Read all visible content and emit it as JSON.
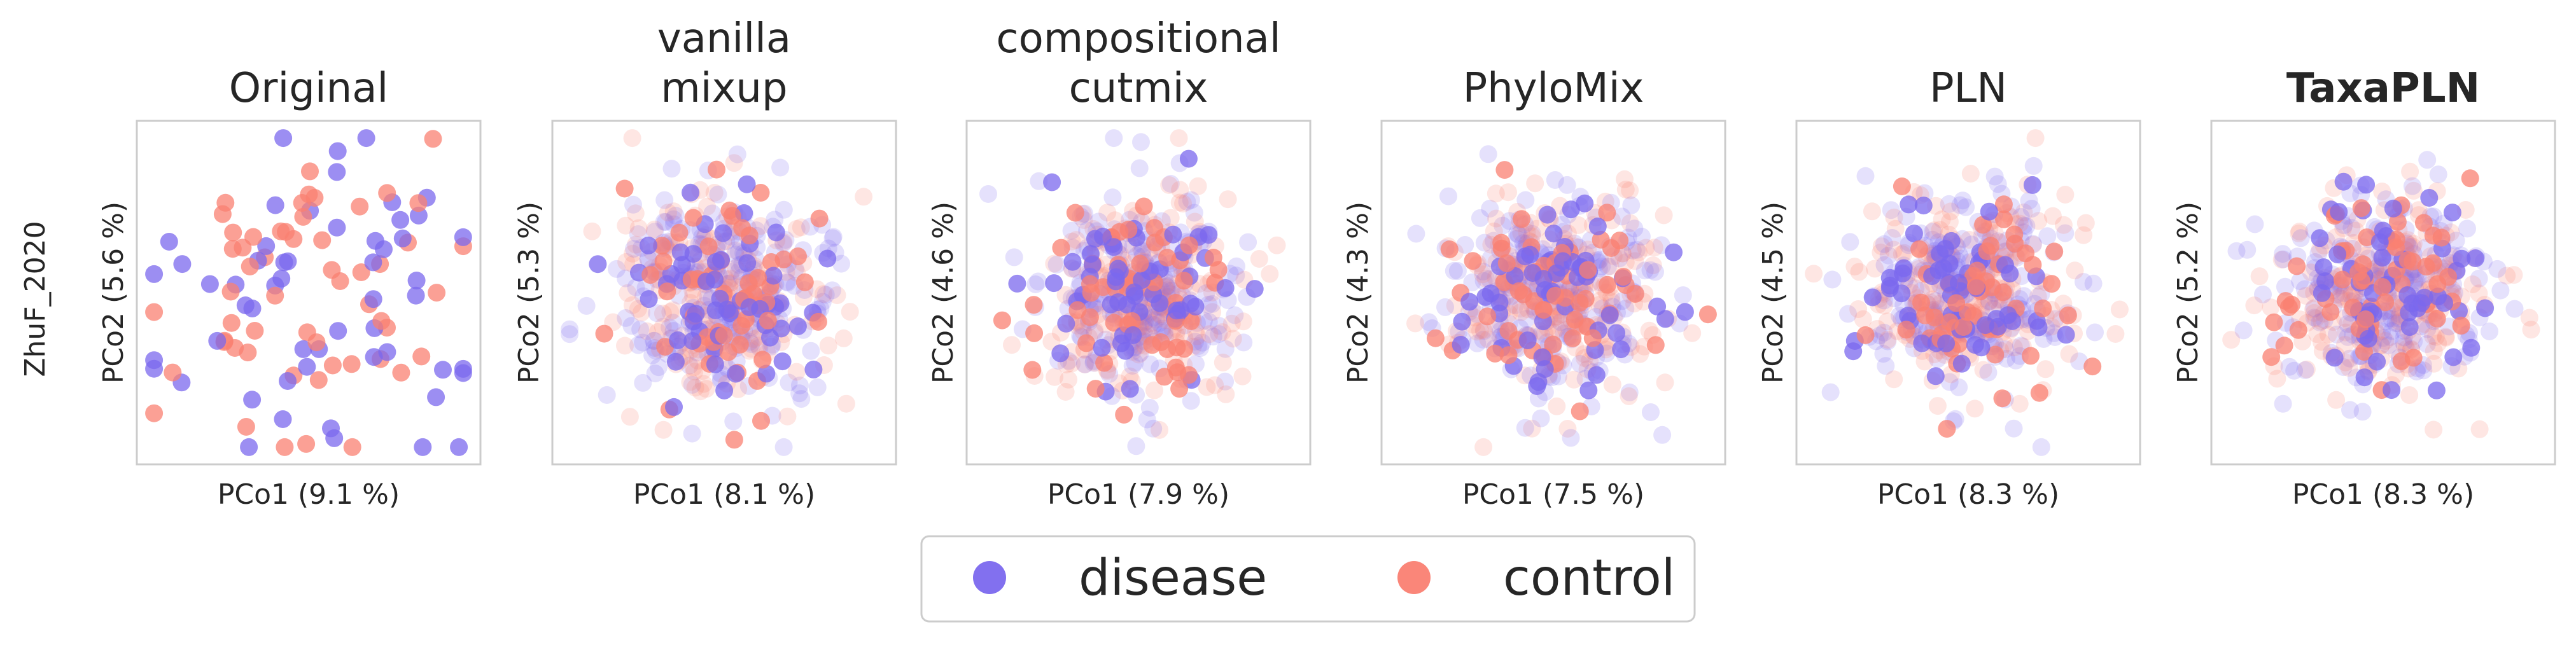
{
  "figure": {
    "row_label": "ZhuF_2020",
    "legend": {
      "placement": "bottom-center",
      "entries": [
        {
          "label": "disease",
          "color": "#7B68EE"
        },
        {
          "label": "control",
          "color": "#FA8072"
        }
      ]
    }
  },
  "chart_data": [
    {
      "type": "scatter",
      "title": [
        "Original"
      ],
      "title_bold": false,
      "xlabel": "PCo1 (9.1 %)",
      "ylabel": "PCo2 (5.6 %)",
      "grid": false,
      "n_disease": 55,
      "n_control": 55,
      "synthetic_points": 0,
      "spread": 1.0
    },
    {
      "type": "scatter",
      "title": [
        "vanilla",
        "mixup"
      ],
      "title_bold": false,
      "xlabel": "PCo1 (8.1 %)",
      "ylabel": "PCo2 (5.3 %)",
      "grid": false,
      "n_disease": 55,
      "n_control": 55,
      "synthetic_points": 420,
      "spread": 0.9
    },
    {
      "type": "scatter",
      "title": [
        "compositional",
        "cutmix"
      ],
      "title_bold": false,
      "xlabel": "PCo1 (7.9 %)",
      "ylabel": "PCo2 (4.6 %)",
      "grid": false,
      "n_disease": 55,
      "n_control": 55,
      "synthetic_points": 420,
      "spread": 0.85
    },
    {
      "type": "scatter",
      "title": [
        "PhyloMix"
      ],
      "title_bold": false,
      "xlabel": "PCo1 (7.5 %)",
      "ylabel": "PCo2 (4.3 %)",
      "grid": false,
      "n_disease": 55,
      "n_control": 55,
      "synthetic_points": 420,
      "spread": 0.85
    },
    {
      "type": "scatter",
      "title": [
        "PLN"
      ],
      "title_bold": false,
      "xlabel": "PCo1 (8.3 %)",
      "ylabel": "PCo2 (4.5 %)",
      "grid": false,
      "n_disease": 55,
      "n_control": 55,
      "synthetic_points": 420,
      "spread": 0.85
    },
    {
      "type": "scatter",
      "title": [
        "TaxaPLN"
      ],
      "title_bold": true,
      "xlabel": "PCo1 (8.3 %)",
      "ylabel": "PCo2 (5.2 %)",
      "grid": false,
      "n_disease": 55,
      "n_control": 55,
      "synthetic_points": 420,
      "spread": 0.85
    }
  ]
}
